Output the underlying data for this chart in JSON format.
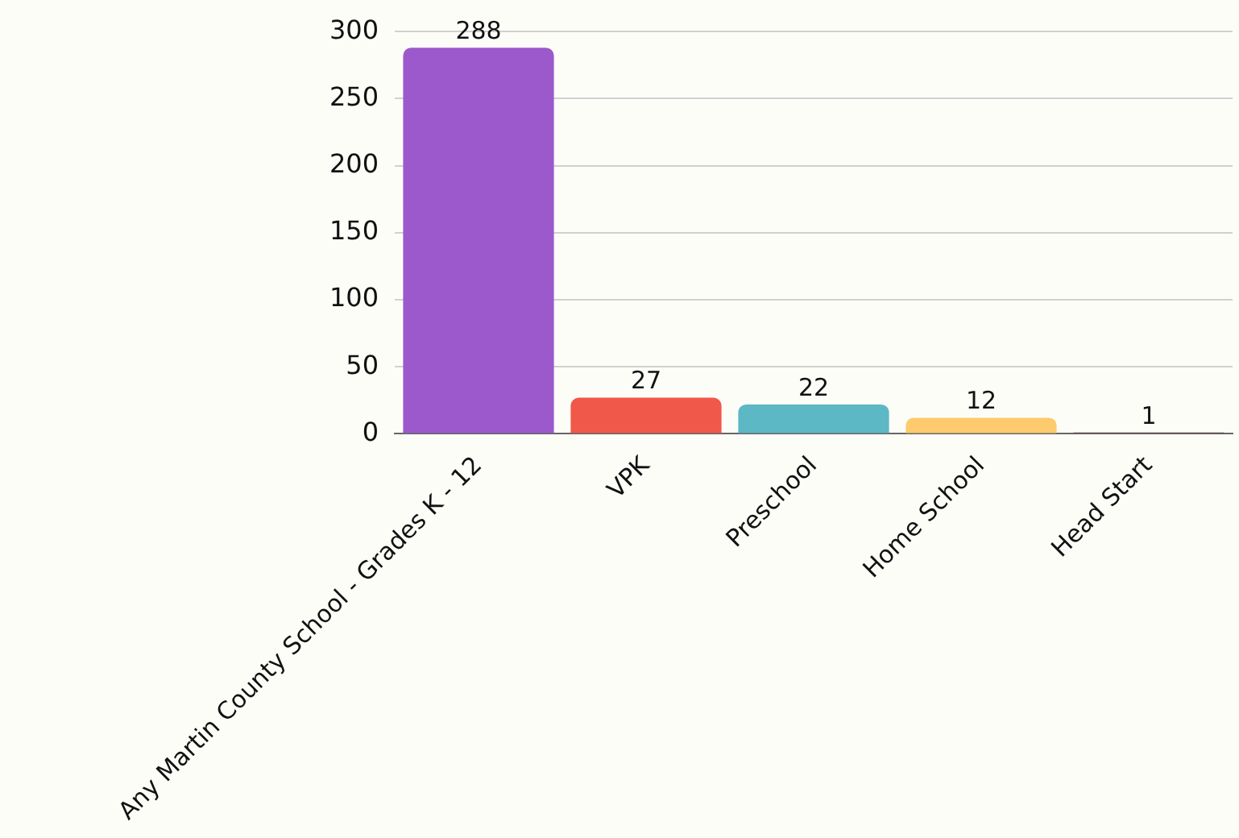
{
  "chart_data": {
    "type": "bar",
    "categories": [
      "Any Martin County School - Grades K - 12",
      "VPK",
      "Preschool",
      "Home School",
      "Head Start"
    ],
    "values": [
      288,
      27,
      22,
      12,
      1
    ],
    "colors": [
      "#9b59cc",
      "#f0584a",
      "#5bb8c4",
      "#fdcb6e",
      "#5a3a3a"
    ],
    "ylim": [
      0,
      300
    ],
    "yticks": [
      0,
      50,
      100,
      150,
      200,
      250,
      300
    ],
    "grid": "y",
    "data_labels": true,
    "legend": false
  }
}
